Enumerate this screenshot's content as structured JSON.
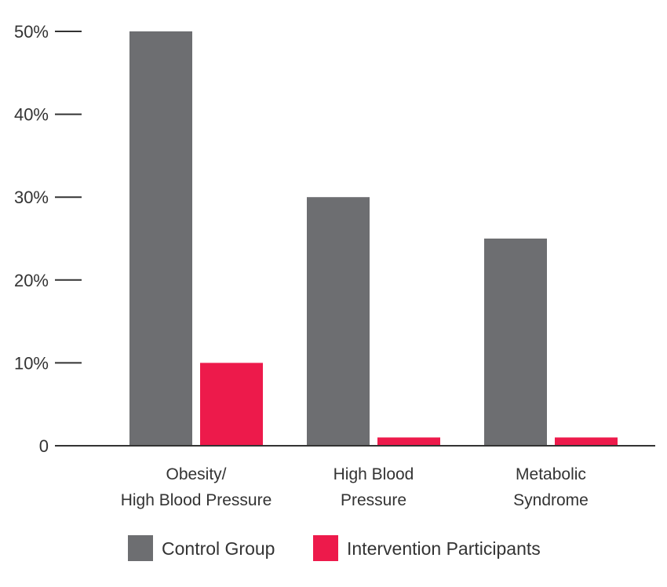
{
  "chart_data": {
    "type": "bar",
    "categories": [
      [
        "Obesity/",
        "High Blood Pressure"
      ],
      [
        "High Blood",
        "Pressure"
      ],
      [
        "Metabolic",
        "Syndrome"
      ]
    ],
    "series": [
      {
        "name": "Control Group",
        "color": "#6d6e71",
        "values": [
          50,
          30,
          25
        ]
      },
      {
        "name": "Intervention Participants",
        "color": "#ed1a4b",
        "values": [
          10,
          1,
          1
        ]
      }
    ],
    "yticks": [
      {
        "value": 0,
        "label": "0"
      },
      {
        "value": 10,
        "label": "10%"
      },
      {
        "value": 20,
        "label": "20%"
      },
      {
        "value": 30,
        "label": "30%"
      },
      {
        "value": 40,
        "label": "40%"
      },
      {
        "value": 50,
        "label": "50%"
      }
    ],
    "ylim": [
      0,
      50
    ],
    "grid": false,
    "legend_position": "bottom",
    "title": "",
    "xlabel": "",
    "ylabel": ""
  }
}
